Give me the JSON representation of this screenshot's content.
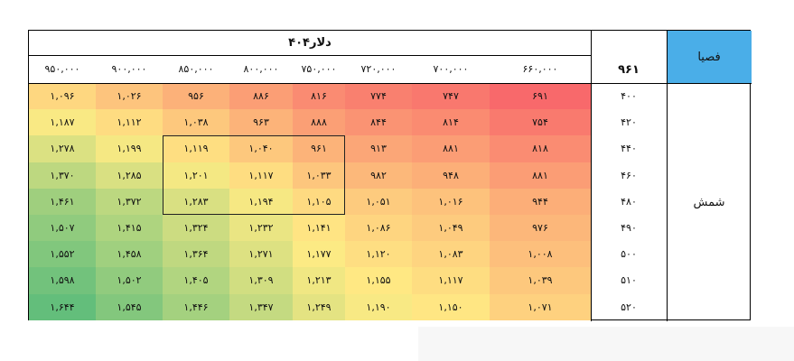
{
  "header": {
    "corner_label": "فصیا",
    "corner_color": "#4aaee8",
    "group_title": "دلار۴۰۴",
    "row_axis_header": "۹۶۱",
    "row_group_label": "شمش",
    "columns": [
      "۹۵۰,۰۰۰",
      "۹۰۰,۰۰۰",
      "۸۵۰,۰۰۰",
      "۸۰۰,۰۰۰",
      "۷۵۰,۰۰۰",
      "۷۲۰,۰۰۰",
      "۷۰۰,۰۰۰",
      "۶۶۰,۰۰۰"
    ]
  },
  "rows": [
    {
      "label": "۴۰۰",
      "cells": [
        "۱,۰۹۶",
        "۱,۰۲۶",
        "۹۵۶",
        "۸۸۶",
        "۸۱۶",
        "۷۷۴",
        "۷۴۷",
        "۶۹۱"
      ],
      "values": [
        1096,
        1026,
        956,
        886,
        816,
        774,
        747,
        691
      ]
    },
    {
      "label": "۴۲۰",
      "cells": [
        "۱,۱۸۷",
        "۱,۱۱۲",
        "۱,۰۳۸",
        "۹۶۳",
        "۸۸۸",
        "۸۴۴",
        "۸۱۴",
        "۷۵۴"
      ],
      "values": [
        1187,
        1112,
        1038,
        963,
        888,
        844,
        814,
        754
      ]
    },
    {
      "label": "۴۴۰",
      "cells": [
        "۱,۲۷۸",
        "۱,۱۹۹",
        "۱,۱۱۹",
        "۱,۰۴۰",
        "۹۶۱",
        "۹۱۳",
        "۸۸۱",
        "۸۱۸"
      ],
      "values": [
        1278,
        1199,
        1119,
        1040,
        961,
        913,
        881,
        818
      ]
    },
    {
      "label": "۴۶۰",
      "cells": [
        "۱,۳۷۰",
        "۱,۲۸۵",
        "۱,۲۰۱",
        "۱,۱۱۷",
        "۱,۰۳۳",
        "۹۸۲",
        "۹۴۸",
        "۸۸۱"
      ],
      "values": [
        1370,
        1285,
        1201,
        1117,
        1033,
        982,
        948,
        881
      ]
    },
    {
      "label": "۴۸۰",
      "cells": [
        "۱,۴۶۱",
        "۱,۳۷۲",
        "۱,۲۸۳",
        "۱,۱۹۴",
        "۱,۱۰۵",
        "۱,۰۵۱",
        "۱,۰۱۶",
        "۹۴۴"
      ],
      "values": [
        1461,
        1372,
        1283,
        1194,
        1105,
        1051,
        1016,
        944
      ]
    },
    {
      "label": "۴۹۰",
      "cells": [
        "۱,۵۰۷",
        "۱,۴۱۵",
        "۱,۳۲۴",
        "۱,۲۳۲",
        "۱,۱۴۱",
        "۱,۰۸۶",
        "۱,۰۴۹",
        "۹۷۶"
      ],
      "values": [
        1507,
        1415,
        1324,
        1232,
        1141,
        1086,
        1049,
        976
      ]
    },
    {
      "label": "۵۰۰",
      "cells": [
        "۱,۵۵۲",
        "۱,۴۵۸",
        "۱,۳۶۴",
        "۱,۲۷۱",
        "۱,۱۷۷",
        "۱,۱۲۰",
        "۱,۰۸۳",
        "۱,۰۰۸"
      ],
      "values": [
        1552,
        1458,
        1364,
        1271,
        1177,
        1120,
        1083,
        1008
      ]
    },
    {
      "label": "۵۱۰",
      "cells": [
        "۱,۵۹۸",
        "۱,۵۰۲",
        "۱,۴۰۵",
        "۱,۳۰۹",
        "۱,۲۱۳",
        "۱,۱۵۵",
        "۱,۱۱۷",
        "۱,۰۳۹"
      ],
      "values": [
        1598,
        1502,
        1405,
        1309,
        1213,
        1155,
        1117,
        1039
      ]
    },
    {
      "label": "۵۲۰",
      "cells": [
        "۱,۶۴۴",
        "۱,۵۴۵",
        "۱,۴۴۶",
        "۱,۳۴۷",
        "۱,۲۴۹",
        "۱,۱۹۰",
        "۱,۱۵۰",
        "۱,۰۷۱"
      ],
      "values": [
        1644,
        1545,
        1446,
        1347,
        1249,
        1190,
        1150,
        1071
      ]
    }
  ],
  "heat_colors": {
    "low": "#f8696b",
    "mid": "#ffeb84",
    "high": "#63be7b"
  },
  "highlight": {
    "row_start": 2,
    "row_end": 4,
    "col_start": 2,
    "col_end": 4
  }
}
